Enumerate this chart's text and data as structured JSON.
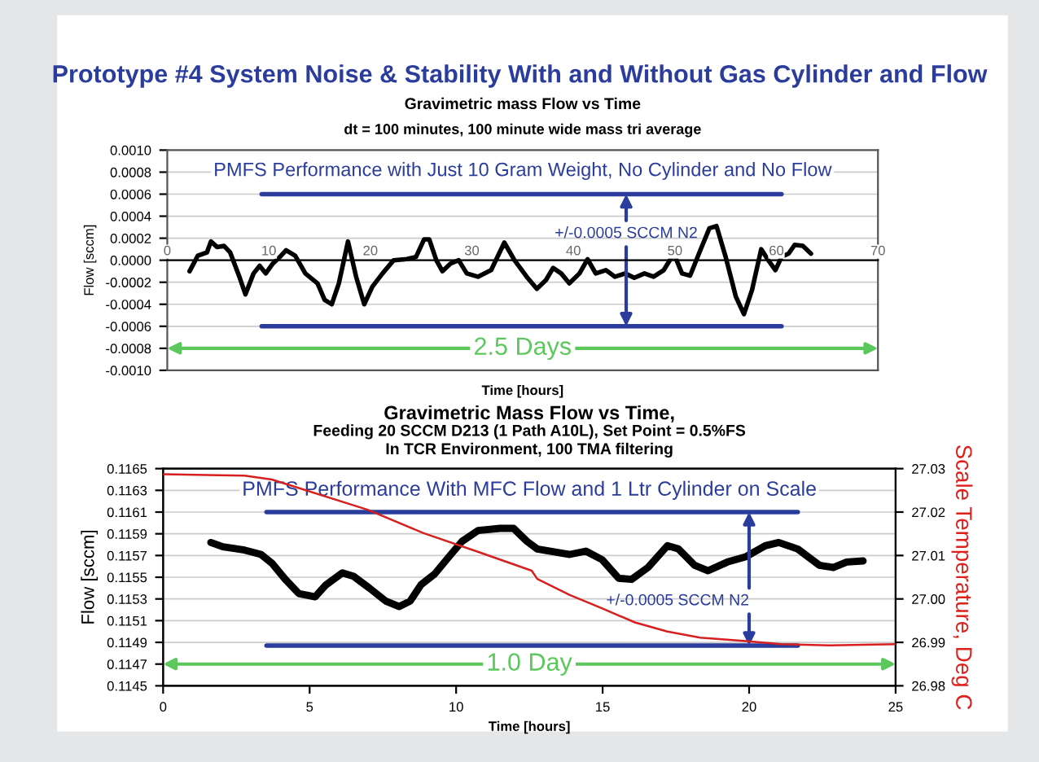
{
  "chart_data": [
    {
      "type": "line",
      "title": "Gravimetric mass Flow vs Time",
      "subtitle": "dt = 100 minutes, 100 minute wide mass tri average",
      "xlabel": "Time [hours]",
      "ylabel": "Flow [sccm]",
      "annotations": [
        "Prototype #4 System Noise & Stability With and Without Gas Cylinder and Flow",
        "PMFS Performance with Just 10 Gram Weight, No Cylinder and No Flow",
        {
          "text": "+/-0.0005 SCCM N2",
          "x": 45.2,
          "y": 0.0006
        },
        "2.5 Days"
      ],
      "xlim": [
        0,
        70
      ],
      "xticks": [
        0,
        10,
        20,
        30,
        40,
        50,
        60,
        70
      ],
      "ylim": [
        -0.001,
        0.001
      ],
      "yticks": [
        {
          "value": -0.001,
          "label": "-0.0010"
        },
        {
          "value": -0.0008,
          "label": "-0.0008"
        },
        {
          "value": -0.0006,
          "label": "-0.0006"
        },
        {
          "value": -0.0004,
          "label": "-0.0004"
        },
        {
          "value": -0.0002,
          "label": "-0.0002"
        },
        {
          "value": 0,
          "label": "0.0000"
        },
        {
          "value": 0.0002,
          "label": "0.0002"
        },
        {
          "value": 0.0004,
          "label": "0.0004"
        },
        {
          "value": 0.0006,
          "label": "0.0006"
        },
        {
          "value": 0.0008,
          "label": "0.0008"
        },
        {
          "value": 0.001,
          "label": "0.0010"
        }
      ],
      "grid": "y",
      "line_style": "solid",
      "series": [
        {
          "color": "#000000",
          "x": [
            2.2,
            3.0,
            3.9,
            4.3,
            4.9,
            5.6,
            6.2,
            7.1,
            7.7,
            8.5,
            9.1,
            9.7,
            10.4,
            11.2,
            11.7,
            12.6,
            13.6,
            14.8,
            15.5,
            16.2,
            16.9,
            17.8,
            18.6,
            19.4,
            20.2,
            21.2,
            22.3,
            23.6,
            24.5,
            25.3,
            25.8,
            26.5,
            27.1,
            27.9,
            28.7,
            29.5,
            30.6,
            31.9,
            33.2,
            34.2,
            35.4,
            36.4,
            37.3,
            38.0,
            38.8,
            39.6,
            40.6,
            41.4,
            42.2,
            43.2,
            44.1,
            45.1,
            46.0,
            47.0,
            47.9,
            48.9,
            49.9,
            50.7,
            51.5,
            52.5,
            53.4,
            54.1,
            55.0,
            56.0,
            56.8,
            57.6,
            58.5,
            59.2,
            59.9,
            60.5,
            61.2,
            61.8,
            62.6,
            63.4
          ],
          "values": [
            -0.0001,
            4e-05,
            7e-05,
            0.00017,
            0.00012,
            0.00013,
            7e-05,
            -0.00015,
            -0.00031,
            -0.00012,
            -5e-05,
            -0.00012,
            -3e-05,
            4e-05,
            9e-05,
            4e-05,
            -0.00012,
            -0.00021,
            -0.00036,
            -0.0004,
            -0.00021,
            0.00017,
            -0.00015,
            -0.0004,
            -0.00024,
            -0.00012,
            0.0,
            1e-05,
            3e-05,
            0.00019,
            0.00019,
            0.0,
            -0.0001,
            -3e-05,
            0.0,
            -0.00012,
            -0.00015,
            -9e-05,
            0.00016,
            0.0,
            -0.00015,
            -0.00026,
            -0.00018,
            -7e-05,
            -0.00012,
            -0.00021,
            -0.00012,
            1e-05,
            -0.00012,
            -9e-05,
            -0.00015,
            -0.00012,
            -0.00016,
            -0.00012,
            -0.00015,
            -9e-05,
            6e-05,
            -0.00012,
            -0.00014,
            9e-05,
            0.00029,
            0.00031,
            3e-05,
            -0.00033,
            -0.00049,
            -0.00027,
            0.0001,
            0.0,
            -9e-05,
            3e-05,
            6e-05,
            0.00014,
            0.00013,
            6e-05
          ]
        },
        {
          "color": "#2b3d9c",
          "x": [
            9.3,
            60.5
          ],
          "values": [
            0.0006,
            0.0006
          ]
        },
        {
          "color": "#2b3d9c",
          "x": [
            9.3,
            60.5
          ],
          "values": [
            -0.0006,
            -0.0006
          ]
        }
      ]
    },
    {
      "type": "line",
      "title": "Gravimetric Mass Flow vs Time,",
      "subtitle": "Feeding 20 SCCM D213 (1 Path A10L), Set Point = 0.5%FS\nIn TCR Environment, 100 TMA filtering",
      "xlabel": "Time [hours]",
      "ylabel": "Flow [sccm]",
      "y2label": "Scale Temperature, Deg C",
      "annotations": [
        "PMFS Performance With MFC Flow and 1 Ltr Cylinder on Scale",
        {
          "text": "+/-0.0005 SCCM N2",
          "x": 20,
          "y": 0.1161
        },
        "1.0 Day"
      ],
      "xlim": [
        0,
        25
      ],
      "xticks": [
        0,
        5,
        10,
        15,
        20,
        25
      ],
      "ylim": [
        0.1145,
        0.1165
      ],
      "yticks": [
        0.1145,
        0.1147,
        0.1149,
        0.1151,
        0.1153,
        0.1155,
        0.1157,
        0.1159,
        0.1161,
        0.1163,
        0.1165
      ],
      "y2lim": [
        26.98,
        27.03
      ],
      "y2ticks": [
        26.98,
        26.99,
        {
          "value": 27.0,
          "label": "27.00"
        },
        27.01,
        27.02,
        27.03
      ],
      "grid": "y",
      "line_style": "solid",
      "series": [
        {
          "color": "#000000",
          "x": [
            1.63,
            2.04,
            2.78,
            3.34,
            3.71,
            4.17,
            4.63,
            5.19,
            5.56,
            6.12,
            6.49,
            7.04,
            7.6,
            8.06,
            8.43,
            8.8,
            9.27,
            9.73,
            10.2,
            10.75,
            11.5,
            11.96,
            12.42,
            12.77,
            13.88,
            14.43,
            14.99,
            15.55,
            15.99,
            16.55,
            17.21,
            17.59,
            18.14,
            18.6,
            19.26,
            19.9,
            20.55,
            21.01,
            21.66,
            22.4,
            22.87,
            23.33,
            23.89
          ],
          "values": [
            0.11582,
            0.11578,
            0.11575,
            0.11571,
            0.11563,
            0.11548,
            0.11535,
            0.11532,
            0.11543,
            0.11554,
            0.11551,
            0.1154,
            0.11528,
            0.11523,
            0.11528,
            0.11543,
            0.11553,
            0.11568,
            0.11583,
            0.11593,
            0.11595,
            0.11595,
            0.11583,
            0.11576,
            0.11571,
            0.11574,
            0.11566,
            0.11549,
            0.11548,
            0.11559,
            0.11579,
            0.11576,
            0.11561,
            0.11556,
            0.11564,
            0.11569,
            0.11579,
            0.11582,
            0.11576,
            0.11561,
            0.11559,
            0.11564,
            0.11565
          ]
        },
        {
          "color": "#2b3d9c",
          "x": [
            3.53,
            21.66
          ],
          "values": [
            0.1161,
            0.1161
          ]
        },
        {
          "color": "#2b3d9c",
          "x": [
            3.53,
            21.66
          ],
          "values": [
            0.11487,
            0.11487
          ]
        },
        {
          "color": "#d62020",
          "axis": "y2",
          "x": [
            0,
            2.78,
            3.71,
            7.0,
            8.87,
            10.72,
            12.58,
            12.77,
            13.88,
            14.99,
            16.1,
            17.21,
            18.33,
            19.9,
            21.1,
            22.77,
            25
          ],
          "values": [
            27.0287,
            27.0284,
            27.0275,
            27.0205,
            27.0152,
            27.0109,
            27.0065,
            27.0046,
            27.0009,
            26.9978,
            26.9946,
            26.9925,
            26.9911,
            26.9903,
            26.9896,
            26.9893,
            26.9896
          ]
        }
      ]
    }
  ]
}
